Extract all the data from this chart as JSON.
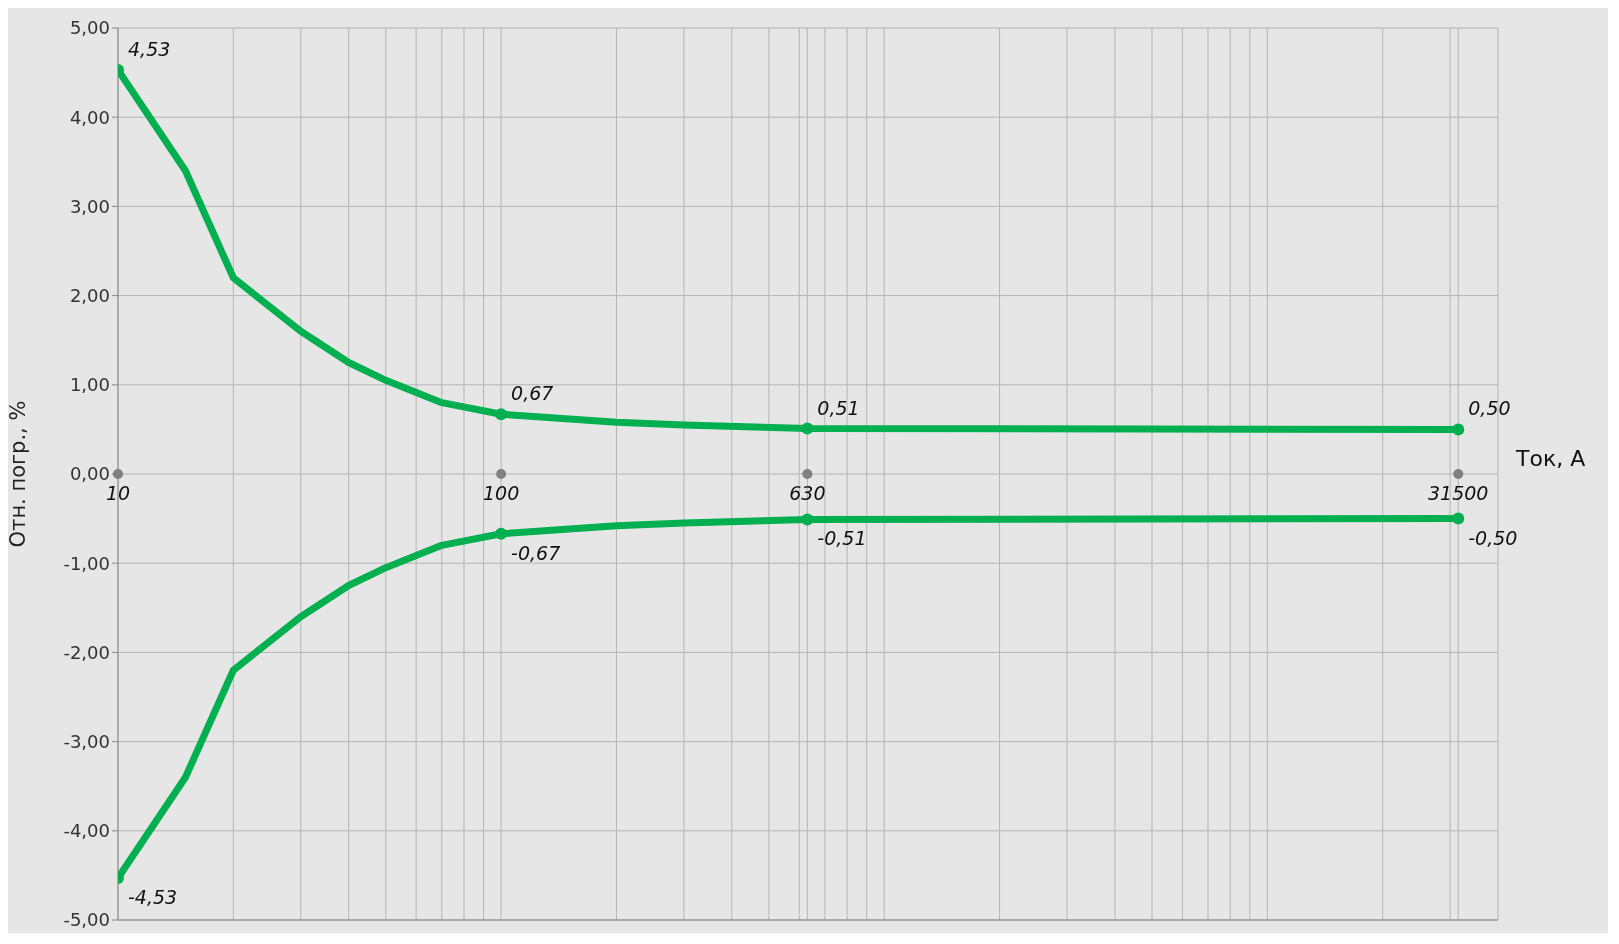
{
  "chart_data": {
    "type": "line",
    "xlabel": "Ток, А",
    "ylabel": "Отн. погр., %",
    "log": "x",
    "grid": true,
    "xlim": [
      10,
      40000
    ],
    "xticks": [
      {
        "value": 10,
        "label": "10"
      },
      {
        "value": 20,
        "label": null
      },
      {
        "value": 30,
        "label": null
      },
      {
        "value": 40,
        "label": null
      },
      {
        "value": 50,
        "label": null
      },
      {
        "value": 60,
        "label": null
      },
      {
        "value": 70,
        "label": null
      },
      {
        "value": 80,
        "label": null
      },
      {
        "value": 90,
        "label": null
      },
      {
        "value": 100,
        "label": "100"
      },
      {
        "value": 630,
        "label": "630"
      },
      {
        "value": 200,
        "label": null
      },
      {
        "value": 300,
        "label": null
      },
      {
        "value": 400,
        "label": null
      },
      {
        "value": 500,
        "label": null
      },
      {
        "value": 600,
        "label": null
      },
      {
        "value": 700,
        "label": null
      },
      {
        "value": 800,
        "label": null
      },
      {
        "value": 900,
        "label": null
      },
      {
        "value": 1000,
        "label": null
      },
      {
        "value": 2000,
        "label": null
      },
      {
        "value": 3000,
        "label": null
      },
      {
        "value": 4000,
        "label": null
      },
      {
        "value": 5000,
        "label": null
      },
      {
        "value": 6000,
        "label": null
      },
      {
        "value": 7000,
        "label": null
      },
      {
        "value": 8000,
        "label": null
      },
      {
        "value": 9000,
        "label": null
      },
      {
        "value": 10000,
        "label": null
      },
      {
        "value": 20000,
        "label": null
      },
      {
        "value": 30000,
        "label": null
      },
      {
        "value": 31500,
        "label": "31500"
      },
      {
        "value": 40000,
        "label": null
      }
    ],
    "ylim": [
      -5,
      5
    ],
    "yticks": [
      {
        "value": -5,
        "label": "-5,00"
      },
      {
        "value": -4,
        "label": "-4,00"
      },
      {
        "value": -3,
        "label": "-3,00"
      },
      {
        "value": -2,
        "label": "-2,00"
      },
      {
        "value": -1,
        "label": "-1,00"
      },
      {
        "value": 0,
        "label": "0,00"
      },
      {
        "value": 1,
        "label": "1,00"
      },
      {
        "value": 2,
        "label": "2,00"
      },
      {
        "value": 3,
        "label": "3,00"
      },
      {
        "value": 4,
        "label": "4,00"
      },
      {
        "value": 5,
        "label": "5,00"
      }
    ],
    "x": [
      10,
      15,
      20,
      30,
      40,
      50,
      70,
      100,
      200,
      300,
      630,
      31500
    ],
    "series": [
      {
        "color": "#00b050",
        "values": [
          4.53,
          3.4,
          2.2,
          1.6,
          1.25,
          1.05,
          0.8,
          0.67,
          0.58,
          0.55,
          0.51,
          0.5
        ],
        "value_labels": [
          "4,53",
          null,
          null,
          null,
          null,
          null,
          null,
          "0,67",
          null,
          null,
          "0,51",
          "0,50"
        ]
      },
      {
        "color": "#00b050",
        "values": [
          -4.53,
          -3.4,
          -2.2,
          -1.6,
          -1.25,
          -1.05,
          -0.8,
          -0.67,
          -0.58,
          -0.55,
          -0.51,
          -0.5
        ],
        "value_labels": [
          "-4,53",
          null,
          null,
          null,
          null,
          null,
          null,
          "-0,67",
          null,
          null,
          "-0,51",
          "-0,50"
        ]
      }
    ]
  }
}
